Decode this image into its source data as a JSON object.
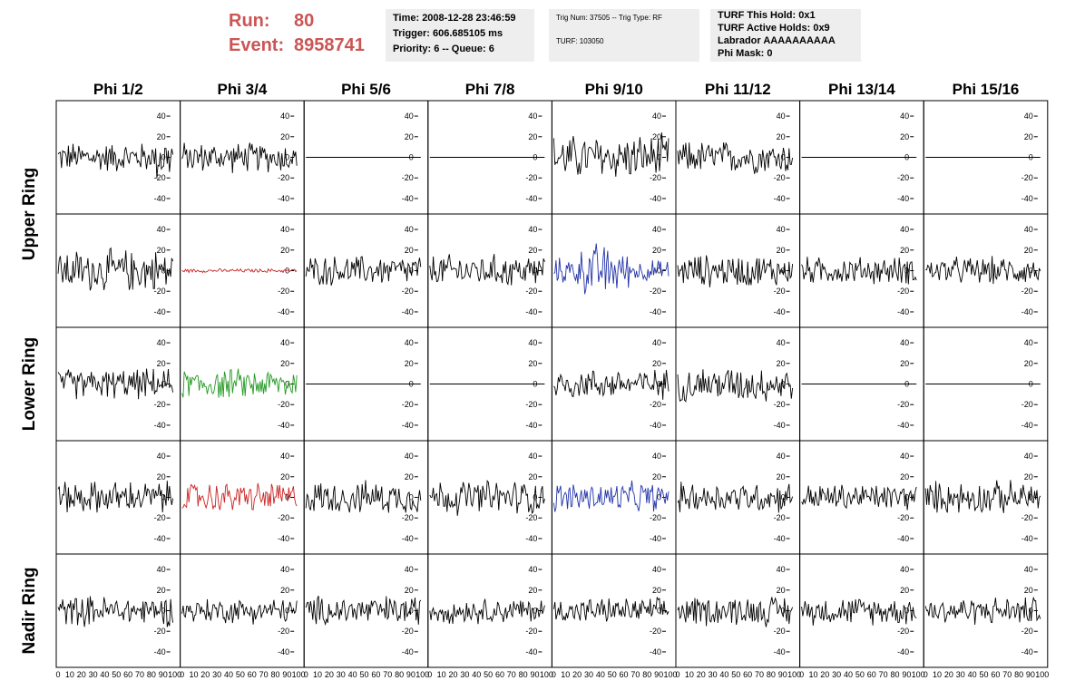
{
  "header": {
    "run_label": "Run:",
    "run_value": "80",
    "event_label": "Event:",
    "event_value": "8958741",
    "time_info": [
      "Time: 2008-12-28 23:46:59",
      "Trigger: 606.685105 ms",
      "Priority: 6 -- Queue: 6"
    ],
    "trig_info": [
      "Trig Num: 37505 -- Trig Type: RF",
      "TURF: 103050"
    ],
    "turf_info": [
      "TURF This Hold: 0x1",
      "TURF Active Holds: 0x9",
      "Labrador AAAAAAAAAA",
      "Phi Mask: 0"
    ]
  },
  "colors": {
    "default": "#000000",
    "red": "#cc2222",
    "green": "#229922",
    "blue": "#2233aa",
    "header_accent": "#cc5555",
    "info_bg": "#eeeeee"
  },
  "chart_data": {
    "type": "line",
    "title": "",
    "column_headers": [
      "Phi 1/2",
      "Phi 3/4",
      "Phi 5/6",
      "Phi 7/8",
      "Phi 9/10",
      "Phi 11/12",
      "Phi 13/14",
      "Phi 15/16"
    ],
    "ring_labels": [
      "Upper Ring",
      "Lower Ring",
      "Nadir Ring"
    ],
    "xlim": [
      0,
      100
    ],
    "ylim": [
      -55,
      55
    ],
    "yticks": [
      "40",
      "20",
      "0",
      "-20",
      "-40"
    ],
    "xticks": [
      "0",
      "10",
      "20",
      "30",
      "40",
      "50",
      "60",
      "70",
      "80",
      "90",
      "100"
    ],
    "grid": false,
    "panels": [
      [
        {
          "amp": 12,
          "color": "default",
          "tail": 1.6
        },
        {
          "amp": 12,
          "color": "default"
        },
        {
          "amp": 0,
          "color": "default"
        },
        {
          "amp": 0,
          "color": "default"
        },
        {
          "amp": 18,
          "color": "default"
        },
        {
          "amp": 13,
          "color": "default"
        },
        {
          "amp": 0,
          "color": "default"
        },
        {
          "amp": 0,
          "color": "default"
        }
      ],
      [
        {
          "amp": 17,
          "color": "default"
        },
        {
          "amp": 1.5,
          "color": "red"
        },
        {
          "amp": 12,
          "color": "default"
        },
        {
          "amp": 13,
          "color": "default"
        },
        {
          "amp": 16,
          "color": "blue",
          "envelope": true
        },
        {
          "amp": 13,
          "color": "default"
        },
        {
          "amp": 11,
          "color": "default"
        },
        {
          "amp": 11,
          "color": "default"
        }
      ],
      [
        {
          "amp": 12,
          "color": "default"
        },
        {
          "amp": 12,
          "color": "green"
        },
        {
          "amp": 0,
          "color": "default"
        },
        {
          "amp": 0,
          "color": "default"
        },
        {
          "amp": 12,
          "color": "default"
        },
        {
          "amp": 14,
          "color": "default"
        },
        {
          "amp": 0,
          "color": "default"
        },
        {
          "amp": 0,
          "color": "default"
        }
      ],
      [
        {
          "amp": 13,
          "color": "default"
        },
        {
          "amp": 12,
          "color": "red"
        },
        {
          "amp": 13,
          "color": "default"
        },
        {
          "amp": 14,
          "color": "default"
        },
        {
          "amp": 12,
          "color": "blue"
        },
        {
          "amp": 12,
          "color": "default"
        },
        {
          "amp": 11,
          "color": "default"
        },
        {
          "amp": 13,
          "color": "default"
        }
      ],
      [
        {
          "amp": 12,
          "color": "default"
        },
        {
          "amp": 10,
          "color": "default"
        },
        {
          "amp": 12,
          "color": "default"
        },
        {
          "amp": 10,
          "color": "default"
        },
        {
          "amp": 10,
          "color": "default"
        },
        {
          "amp": 12,
          "color": "default"
        },
        {
          "amp": 11,
          "color": "default"
        },
        {
          "amp": 11,
          "color": "default"
        }
      ]
    ]
  }
}
